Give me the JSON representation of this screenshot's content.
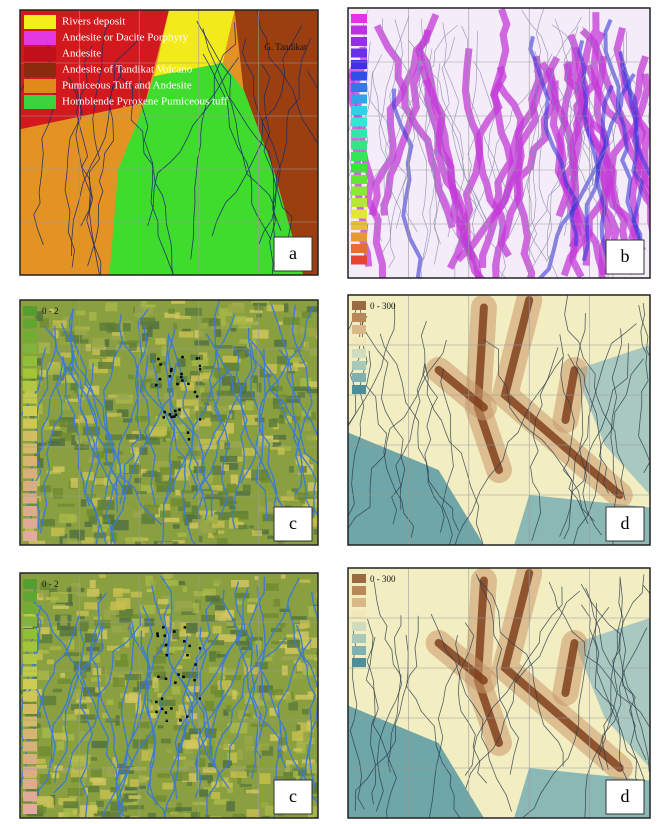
{
  "panels": [
    {
      "label": "a",
      "legend": [
        "Rivers deposit",
        "Andesite or Dacite Porphyry",
        "Andesite",
        "Andesite of Tandikat Volcano",
        "Pumiceous Tuff and Andesite",
        "Hornblende Pyroxene Pumiceous tuff"
      ],
      "places": [
        "G. Tandikat"
      ]
    },
    {
      "label": "b",
      "legend": [],
      "places": []
    },
    {
      "label": "c",
      "legend": [
        "0 - 2"
      ],
      "places": []
    },
    {
      "label": "d",
      "legend": [
        "0 - 300"
      ],
      "places": []
    },
    {
      "label": "c",
      "legend": [
        "0 - 2"
      ],
      "places": []
    },
    {
      "label": "d",
      "legend": [
        "0 - 300"
      ],
      "places": []
    }
  ]
}
